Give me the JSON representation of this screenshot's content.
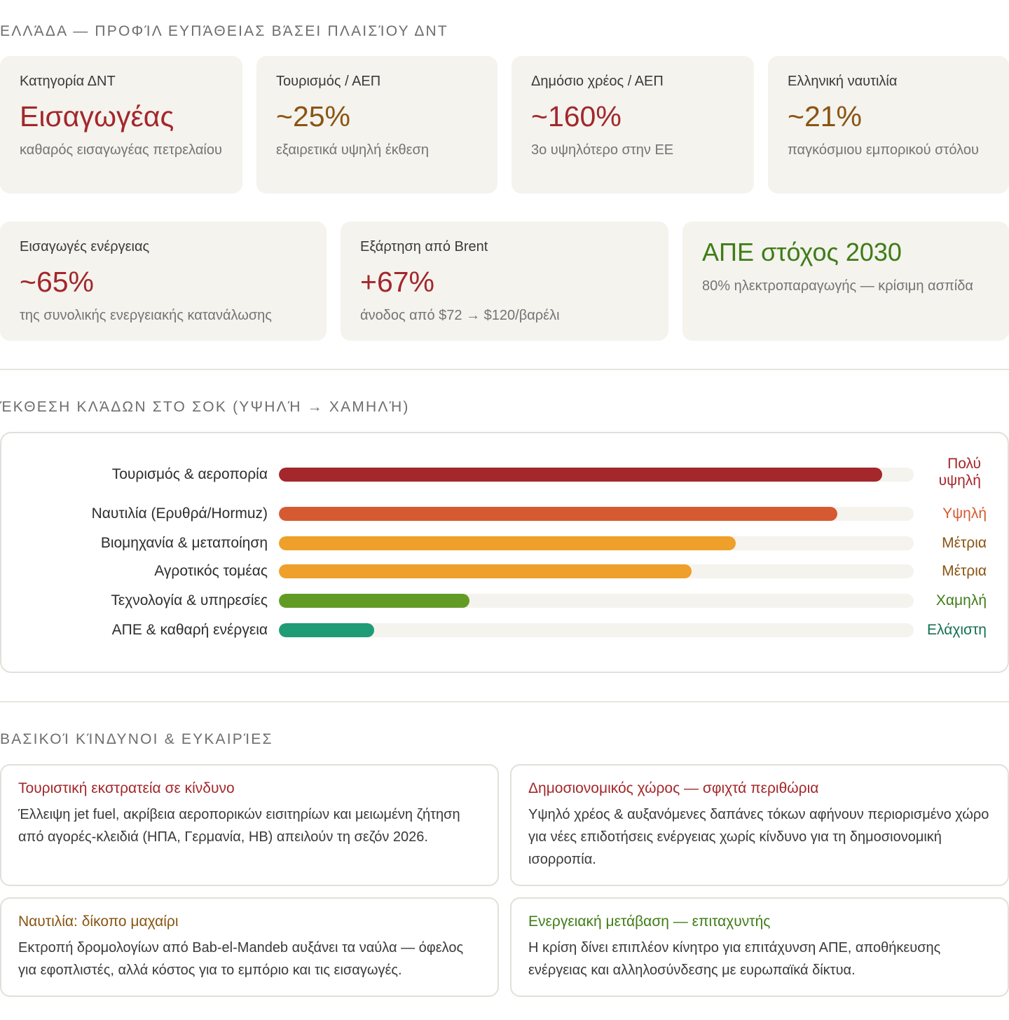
{
  "profile": {
    "title": "ΕΛΛΆΔΑ — ΠΡΟΦΊΛ ΕΥΠΆΘΕΙΑΣ ΒΆΣΕΙ ΠΛΑΙΣΊΟΥ ΔΝΤ",
    "metrics": [
      {
        "label": "Κατηγορία ΔΝΤ",
        "value": "Εισαγωγέας",
        "sub": "καθαρός εισαγωγέας πετρελαίου",
        "color": "#a3272b"
      },
      {
        "label": "Τουρισμός / ΑΕΠ",
        "value": "~25%",
        "sub": "εξαιρετικά υψηλή έκθεση",
        "color": "#8a5412"
      },
      {
        "label": "Δημόσιο χρέος / ΑΕΠ",
        "value": "~160%",
        "sub": "3ο υψηλότερο στην ΕΕ",
        "color": "#a3272b"
      },
      {
        "label": "Ελληνική ναυτιλία",
        "value": "~21%",
        "sub": "παγκόσμιου εμπορικού στόλου",
        "color": "#8a5412"
      },
      {
        "label": "Εισαγωγές ενέργειας",
        "value": "~65%",
        "sub": "της συνολικής ενεργειακής κατανάλωσης",
        "color": "#a3272b"
      },
      {
        "label": "Εξάρτηση από Brent",
        "value": "+67%",
        "sub": "άνοδος από $72 → $120/βαρέλι",
        "color": "#a3272b"
      },
      {
        "label": "",
        "value": "ΑΠΕ στόχος 2030",
        "sub": "80% ηλεκτροπαραγωγής — κρίσιμη ασπίδα",
        "color": "#3f7c17"
      }
    ]
  },
  "exposure": {
    "title": "ΈΚΘΕΣΗ ΚΛΆΔΩΝ ΣΤΟ ΣΟΚ (ΥΨΗΛΉ → ΧΑΜΗΛΉ)",
    "sectors": [
      {
        "name": "Τουρισμός & αεροπορία",
        "level": "Πολύ υψηλή",
        "exposure": 0.95,
        "color": "#a3272b",
        "text_color": "#a3272b"
      },
      {
        "name": "Ναυτιλία (Ερυθρά/Hormuz)",
        "level": "Υψηλή",
        "exposure": 0.88,
        "color": "#d65a31",
        "text_color": "#d65a31"
      },
      {
        "name": "Βιομηχανία & μεταποίηση",
        "level": "Μέτρια",
        "exposure": 0.72,
        "color": "#eea02a",
        "text_color": "#8a5412"
      },
      {
        "name": "Αγροτικός τομέας",
        "level": "Μέτρια",
        "exposure": 0.65,
        "color": "#eea02a",
        "text_color": "#8a5412"
      },
      {
        "name": "Τεχνολογία & υπηρεσίες",
        "level": "Χαμηλή",
        "exposure": 0.3,
        "color": "#629b24",
        "text_color": "#3f7c17"
      },
      {
        "name": "ΑΠΕ & καθαρή ενέργεια",
        "level": "Ελάχιστη",
        "exposure": 0.15,
        "color": "#1f9b76",
        "text_color": "#14714f"
      }
    ]
  },
  "risks": {
    "title": "ΒΑΣΙΚΟΊ ΚΊΝΔΥΝΟΙ & ΕΥΚΑΙΡΊΕΣ",
    "items": [
      {
        "title": "Τουριστική εκστρατεία σε κίνδυνο",
        "body": "Έλλειψη jet fuel, ακρίβεια αεροπορικών εισιτηρίων και μειωμένη ζήτηση από αγορές-κλειδιά (ΗΠΑ, Γερμανία, ΗΒ) απειλούν τη σεζόν 2026.",
        "color": "#a3272b"
      },
      {
        "title": "Δημοσιονομικός χώρος — σφιχτά περιθώρια",
        "body": "Υψηλό χρέος & αυξανόμενες δαπάνες τόκων αφήνουν περιορισμένο χώρο για νέες επιδοτήσεις ενέργειας χωρίς κίνδυνο για τη δημοσιονομική ισορροπία.",
        "color": "#a3272b"
      },
      {
        "title": "Ναυτιλία: δίκοπο μαχαίρι",
        "body": "Εκτροπή δρομολογίων από Bab-el-Mandeb αυξάνει τα ναύλα — όφελος για εφοπλιστές, αλλά κόστος για το εμπόριο και τις εισαγωγές.",
        "color": "#8a5412"
      },
      {
        "title": "Ενεργειακή μετάβαση — επιταχυντής",
        "body": "Η κρίση δίνει επιπλέον κίνητρο για επιτάχυνση ΑΠΕ, αποθήκευσης ενέργειας και αλληλοσύνδεσης με ευρωπαϊκά δίκτυα.",
        "color": "#3f7c17"
      }
    ]
  }
}
